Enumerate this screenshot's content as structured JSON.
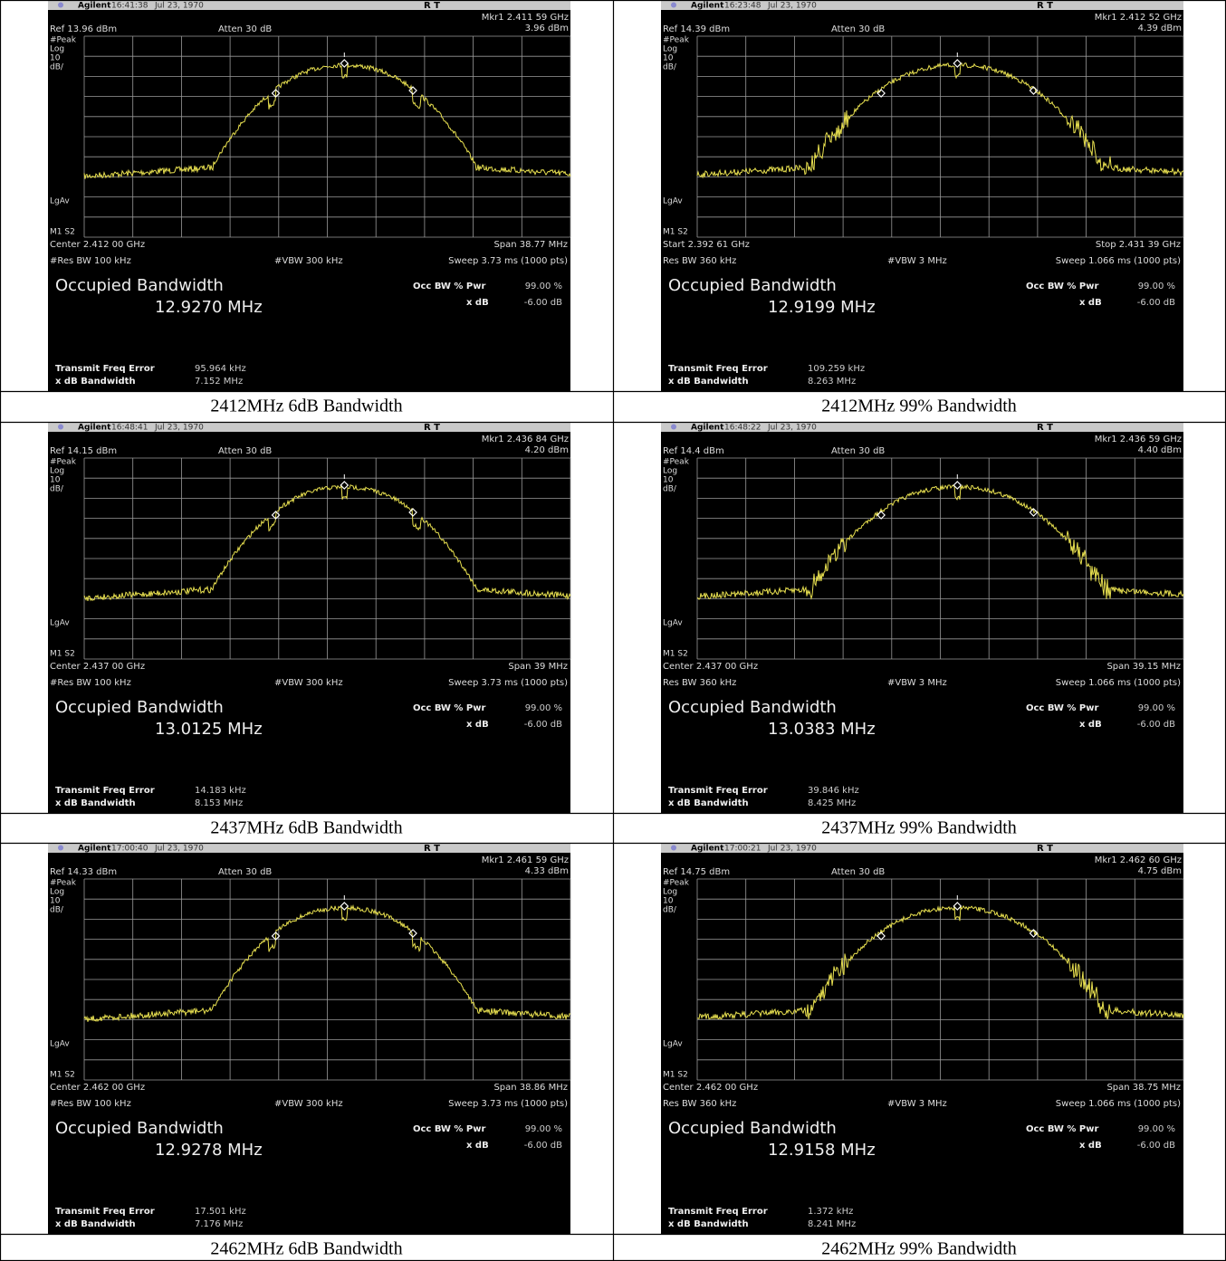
{
  "panels": [
    {
      "brand": "Agilent",
      "time": "16:41:38",
      "date": "Jul 23, 1970",
      "status": "R  T",
      "marker": "Mkr1  2.411 59 GHz",
      "marker_level": "3.96 dBm",
      "ref": "Ref 13.96 dBm",
      "atten": "Atten 30 dB",
      "detector": "#Peak",
      "scale_type": "Log",
      "scale_value": "10",
      "scale_unit": "dB/",
      "avg": "LgAv",
      "markers_label": "M1 S2",
      "freq_left": "Center 2.412 00 GHz",
      "freq_right": "Span 38.77 MHz",
      "rbw": "#Res BW 100 kHz",
      "vbw": "#VBW 300 kHz",
      "sweep": "Sweep 3.73 ms (1000 pts)",
      "measure_title": "Occupied Bandwidth",
      "occ_bw": "12.9270 MHz",
      "occ_pwr_label": "Occ BW % Pwr",
      "occ_pwr": "99.00 %",
      "xdb_label": "x dB",
      "xdb": "-6.00 dB",
      "freq_error_label": "Transmit Freq Error",
      "freq_error": "95.964 kHz",
      "xdb_bw_label": "x dB Bandwidth",
      "xdb_bw": "7.152 MHz",
      "caption": "2412MHz 6dB Bandwidth"
    },
    {
      "brand": "Agilent",
      "time": "16:23:48",
      "date": "Jul 23, 1970",
      "status": "R  T",
      "marker": "Mkr1  2.412 52 GHz",
      "marker_level": "4.39 dBm",
      "ref": "Ref 14.39 dBm",
      "atten": "Atten 30 dB",
      "detector": "#Peak",
      "scale_type": "Log",
      "scale_value": "10",
      "scale_unit": "dB/",
      "avg": "LgAv",
      "markers_label": "M1 S2",
      "freq_left": "Start 2.392 61 GHz",
      "freq_right": "Stop 2.431 39 GHz",
      "rbw": "Res BW 360 kHz",
      "vbw": "#VBW 3 MHz",
      "sweep": "Sweep 1.066 ms (1000 pts)",
      "measure_title": "Occupied Bandwidth",
      "occ_bw": "12.9199 MHz",
      "occ_pwr_label": "Occ BW % Pwr",
      "occ_pwr": "99.00 %",
      "xdb_label": "x dB",
      "xdb": "-6.00 dB",
      "freq_error_label": "Transmit Freq Error",
      "freq_error": "109.259 kHz",
      "xdb_bw_label": "x dB Bandwidth",
      "xdb_bw": "8.263 MHz",
      "caption": "2412MHz 99% Bandwidth"
    },
    {
      "brand": "Agilent",
      "time": "16:48:41",
      "date": "Jul 23, 1970",
      "status": "R  T",
      "marker": "Mkr1  2.436 84 GHz",
      "marker_level": "4.20 dBm",
      "ref": "Ref 14.15 dBm",
      "atten": "Atten 30 dB",
      "detector": "#Peak",
      "scale_type": "Log",
      "scale_value": "10",
      "scale_unit": "dB/",
      "avg": "LgAv",
      "markers_label": "M1 S2",
      "freq_left": "Center 2.437 00 GHz",
      "freq_right": "Span 39 MHz",
      "rbw": "#Res BW 100 kHz",
      "vbw": "#VBW 300 kHz",
      "sweep": "Sweep 3.73 ms (1000 pts)",
      "measure_title": "Occupied Bandwidth",
      "occ_bw": "13.0125 MHz",
      "occ_pwr_label": "Occ BW % Pwr",
      "occ_pwr": "99.00 %",
      "xdb_label": "x dB",
      "xdb": "-6.00 dB",
      "freq_error_label": "Transmit Freq Error",
      "freq_error": "14.183 kHz",
      "xdb_bw_label": "x dB Bandwidth",
      "xdb_bw": "8.153 MHz",
      "caption": "2437MHz 6dB Bandwidth"
    },
    {
      "brand": "Agilent",
      "time": "16:48:22",
      "date": "Jul 23, 1970",
      "status": "R  T",
      "marker": "Mkr1  2.436 59 GHz",
      "marker_level": "4.40 dBm",
      "ref": "Ref 14.4 dBm",
      "atten": "Atten 30 dB",
      "detector": "#Peak",
      "scale_type": "Log",
      "scale_value": "10",
      "scale_unit": "dB/",
      "avg": "LgAv",
      "markers_label": "M1 S2",
      "freq_left": "Center 2.437 00 GHz",
      "freq_right": "Span 39.15 MHz",
      "rbw": "Res BW 360 kHz",
      "vbw": "#VBW 3 MHz",
      "sweep": "Sweep 1.066 ms (1000 pts)",
      "measure_title": "Occupied Bandwidth",
      "occ_bw": "13.0383 MHz",
      "occ_pwr_label": "Occ BW % Pwr",
      "occ_pwr": "99.00 %",
      "xdb_label": "x dB",
      "xdb": "-6.00 dB",
      "freq_error_label": "Transmit Freq Error",
      "freq_error": "39.846 kHz",
      "xdb_bw_label": "x dB Bandwidth",
      "xdb_bw": "8.425 MHz",
      "caption": "2437MHz 99% Bandwidth"
    },
    {
      "brand": "Agilent",
      "time": "17:00:40",
      "date": "Jul 23, 1970",
      "status": "R  T",
      "marker": "Mkr1  2.461 59 GHz",
      "marker_level": "4.33 dBm",
      "ref": "Ref 14.33 dBm",
      "atten": "Atten 30 dB",
      "detector": "#Peak",
      "scale_type": "Log",
      "scale_value": "10",
      "scale_unit": "dB/",
      "avg": "LgAv",
      "markers_label": "M1 S2",
      "freq_left": "Center 2.462 00 GHz",
      "freq_right": "Span 38.86 MHz",
      "rbw": "#Res BW 100 kHz",
      "vbw": "#VBW 300 kHz",
      "sweep": "Sweep 3.73 ms (1000 pts)",
      "measure_title": "Occupied Bandwidth",
      "occ_bw": "12.9278 MHz",
      "occ_pwr_label": "Occ BW % Pwr",
      "occ_pwr": "99.00 %",
      "xdb_label": "x dB",
      "xdb": "-6.00 dB",
      "freq_error_label": "Transmit Freq Error",
      "freq_error": "17.501 kHz",
      "xdb_bw_label": "x dB Bandwidth",
      "xdb_bw": "7.176 MHz",
      "caption": "2462MHz 6dB Bandwidth"
    },
    {
      "brand": "Agilent",
      "time": "17:00:21",
      "date": "Jul 23, 1970",
      "status": "R  T",
      "marker": "Mkr1  2.462 60 GHz",
      "marker_level": "4.75 dBm",
      "ref": "Ref 14.75 dBm",
      "atten": "Atten 30 dB",
      "detector": "#Peak",
      "scale_type": "Log",
      "scale_value": "10",
      "scale_unit": "dB/",
      "avg": "LgAv",
      "markers_label": "M1 S2",
      "freq_left": "Center 2.462 00 GHz",
      "freq_right": "Span 38.75 MHz",
      "rbw": "Res BW 360 kHz",
      "vbw": "#VBW 3 MHz",
      "sweep": "Sweep 1.066 ms (1000 pts)",
      "measure_title": "Occupied Bandwidth",
      "occ_bw": "12.9158 MHz",
      "occ_pwr_label": "Occ BW % Pwr",
      "occ_pwr": "99.00 %",
      "xdb_label": "x dB",
      "xdb": "-6.00 dB",
      "freq_error_label": "Transmit Freq Error",
      "freq_error": "1.372 kHz",
      "xdb_bw_label": "x dB Bandwidth",
      "xdb_bw": "8.241 MHz",
      "caption": "2462MHz 99% Bandwidth"
    }
  ]
}
